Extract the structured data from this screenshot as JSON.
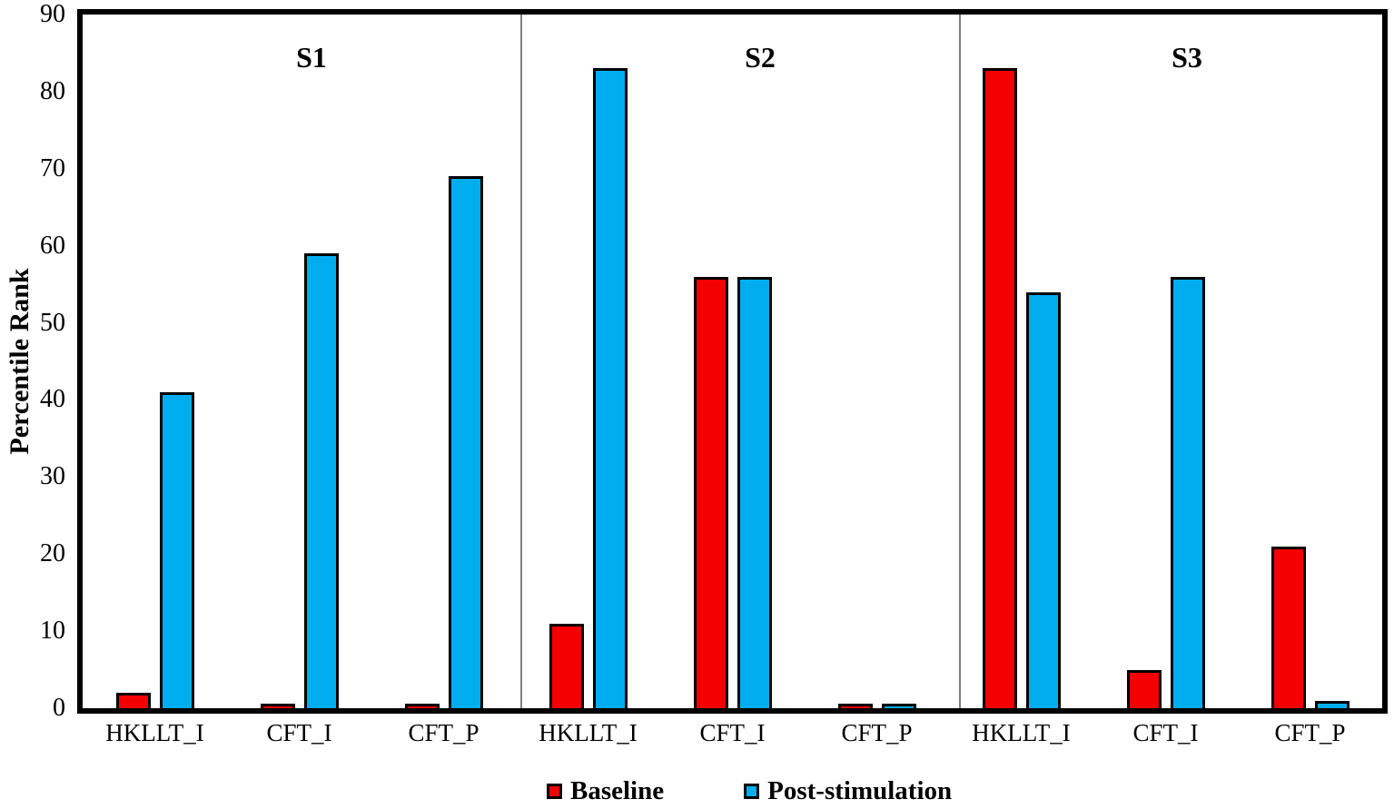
{
  "chart_data": {
    "type": "bar",
    "title": "",
    "xlabel": "",
    "ylabel": "Percentile Rank",
    "ylim": [
      0,
      90
    ],
    "yticks": [
      0,
      10,
      20,
      30,
      40,
      50,
      60,
      70,
      80,
      90
    ],
    "grid": false,
    "legend_position": "bottom",
    "sections": [
      "S1",
      "S2",
      "S3"
    ],
    "categories": [
      "HKLLT_I",
      "CFT_I",
      "CFT_P",
      "HKLLT_I",
      "CFT_I",
      "CFT_P",
      "HKLLT_I",
      "CFT_I",
      "CFT_P"
    ],
    "section_of_category": [
      0,
      0,
      0,
      1,
      1,
      1,
      2,
      2,
      2
    ],
    "series": [
      {
        "name": "Baseline",
        "color": "#F40000",
        "values": [
          2,
          0.5,
          0.5,
          11,
          56,
          0.5,
          83,
          5,
          21
        ]
      },
      {
        "name": "Post-stimulation",
        "color": "#00AEEF",
        "values": [
          41,
          59,
          69,
          83,
          56,
          0.5,
          54,
          56,
          1
        ]
      }
    ]
  },
  "legend": {
    "items": [
      {
        "label": "Baseline",
        "color": "#F40000"
      },
      {
        "label": "Post-stimulation",
        "color": "#00AEEF"
      }
    ]
  }
}
